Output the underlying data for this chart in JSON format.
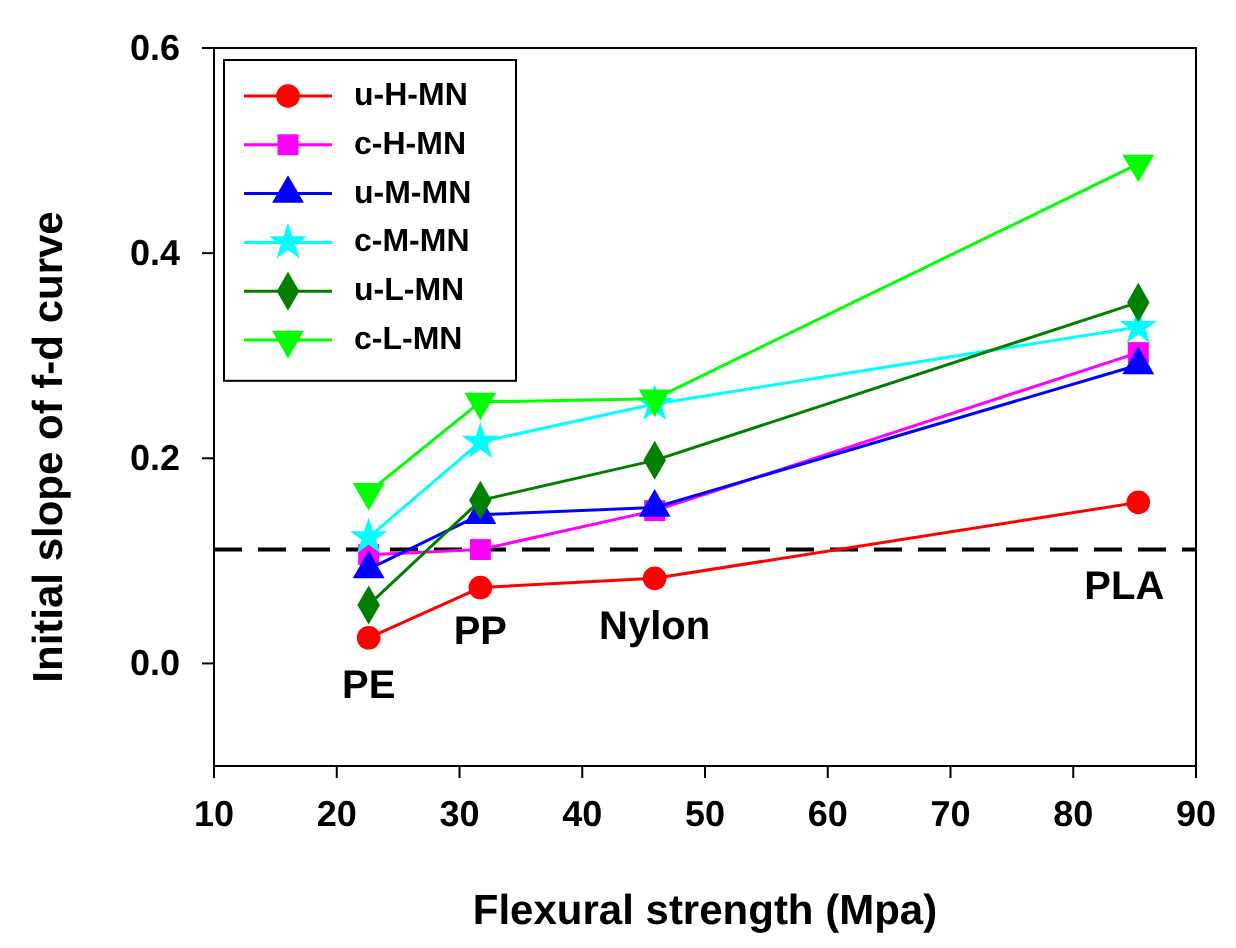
{
  "chart_data": {
    "type": "line",
    "xlabel": "Flexural strength (Mpa)",
    "ylabel": "Initial slope of f-d curve",
    "x": [
      22.6,
      31.7,
      45.9,
      85.3
    ],
    "xlim": [
      10,
      90
    ],
    "xticks": [
      10,
      20,
      30,
      40,
      50,
      60,
      70,
      80,
      90
    ],
    "ylim": [
      -0.1,
      0.6
    ],
    "yticks": [
      {
        "value": 0,
        "label": "0.0"
      },
      0.2,
      0.4,
      0.6
    ],
    "series": [
      {
        "name": "u-H-MN",
        "color": "#ff0000",
        "marker": "circle",
        "values": [
          0.025,
          0.074,
          0.083,
          0.157
        ]
      },
      {
        "name": "c-H-MN",
        "color": "#ff00ff",
        "marker": "square",
        "values": [
          0.106,
          0.111,
          0.149,
          0.303
        ]
      },
      {
        "name": "u-M-MN",
        "color": "#0000ff",
        "marker": "triangle",
        "values": [
          0.092,
          0.145,
          0.152,
          0.291
        ]
      },
      {
        "name": "c-M-MN",
        "color": "#00ffff",
        "marker": "star",
        "values": [
          0.123,
          0.216,
          0.253,
          0.328
        ]
      },
      {
        "name": "u-L-MN",
        "color": "#007f00",
        "marker": "diamond",
        "values": [
          0.057,
          0.159,
          0.198,
          0.352
        ]
      },
      {
        "name": "c-L-MN",
        "color": "#00ff00",
        "marker": "triangle-down",
        "values": [
          0.167,
          0.255,
          0.258,
          0.487
        ]
      }
    ],
    "ref_lines": [
      {
        "axis": "y",
        "value": 0.111,
        "color": "#000000",
        "line_style": "dashed"
      }
    ],
    "annotations": [
      "PE",
      "PP",
      "Nylon",
      "PLA"
    ],
    "legend": "top left",
    "grid": false
  }
}
